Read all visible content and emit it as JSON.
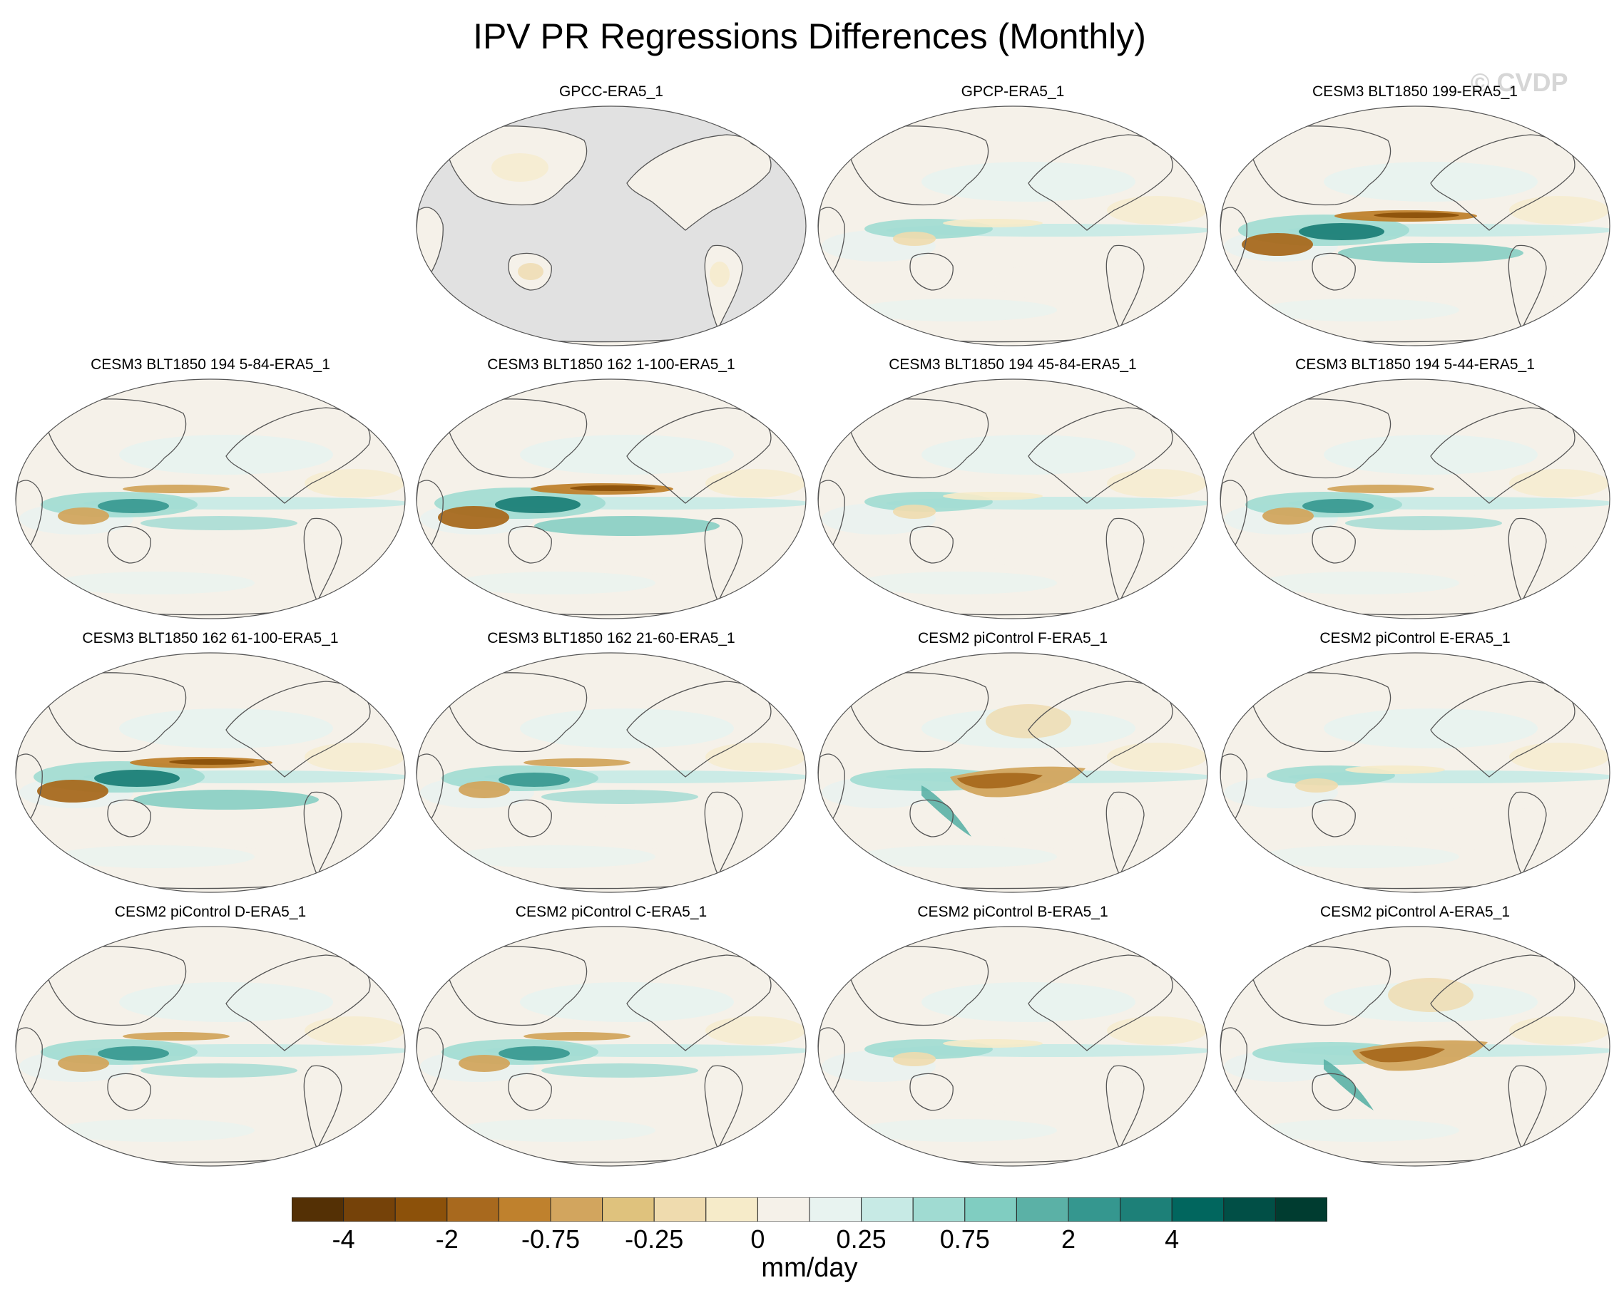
{
  "figure": {
    "title": "IPV PR Regressions Differences (Monthly)",
    "watermark": "© CVDP"
  },
  "panels": [
    {
      "title": "GPCC-ERA5_1",
      "style": "land_only"
    },
    {
      "title": "GPCP-ERA5_1",
      "style": "weak"
    },
    {
      "title": "CESM3 BLT1850 199-ERA5_1",
      "style": "strong"
    },
    {
      "title": "CESM3 BLT1850 194 5-84-ERA5_1",
      "style": "moderate"
    },
    {
      "title": "CESM3 BLT1850 162 1-100-ERA5_1",
      "style": "strong"
    },
    {
      "title": "CESM3 BLT1850 194 45-84-ERA5_1",
      "style": "weak"
    },
    {
      "title": "CESM3 BLT1850 194 5-44-ERA5_1",
      "style": "moderate"
    },
    {
      "title": "CESM3 BLT1850 162 61-100-ERA5_1",
      "style": "strong"
    },
    {
      "title": "CESM3 BLT1850 162 21-60-ERA5_1",
      "style": "moderate"
    },
    {
      "title": "CESM2 piControl F-ERA5_1",
      "style": "tan_wedge"
    },
    {
      "title": "CESM2 piControl E-ERA5_1",
      "style": "weak"
    },
    {
      "title": "CESM2 piControl D-ERA5_1",
      "style": "moderate"
    },
    {
      "title": "CESM2 piControl C-ERA5_1",
      "style": "moderate"
    },
    {
      "title": "CESM2 piControl B-ERA5_1",
      "style": "weak"
    },
    {
      "title": "CESM2 piControl A-ERA5_1",
      "style": "tan_wedge"
    }
  ],
  "colorbar": {
    "units": "mm/day",
    "labels": [
      "-4",
      "-2",
      "-0.75",
      "-0.25",
      "0",
      "0.25",
      "0.75",
      "2",
      "4"
    ],
    "colors": [
      "#543005",
      "#754209",
      "#8c510a",
      "#a8691e",
      "#bf812d",
      "#d2a55e",
      "#dfc27d",
      "#efdbae",
      "#f6ebc9",
      "#f5f1e9",
      "#e8f3f0",
      "#c7eae5",
      "#a0dbd2",
      "#80cdc1",
      "#5bb1a6",
      "#35978f",
      "#1d8078",
      "#01665e",
      "#014f46",
      "#003c30"
    ]
  },
  "colors": {
    "land_mask": "#e1e1e1",
    "neutral_ocean": "#f5f1e9",
    "coastline": "#555555"
  }
}
